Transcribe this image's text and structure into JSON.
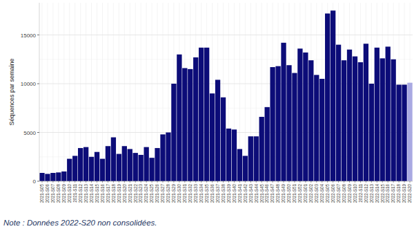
{
  "chart_data": {
    "type": "bar",
    "y_label": "Séquences par semaine",
    "annotation": "Note : Données 2022-S20 non consolidées.",
    "categories": [
      "2021-S05",
      "2021-S06",
      "2021-S07",
      "2021-S08",
      "2021-S09",
      "2021-S10",
      "2021-S11",
      "2021-S12",
      "2021-S13",
      "2021-S14",
      "2021-S15",
      "2021-S16",
      "2021-S17",
      "2021-S18",
      "2021-S19",
      "2021-S20",
      "2021-S21",
      "2021-S22",
      "2021-S23",
      "2021-S24",
      "2021-S25",
      "2021-S26",
      "2021-S27",
      "2021-S28",
      "2021-S29",
      "2021-S30",
      "2021-S31",
      "2021-S32",
      "2021-S33",
      "2021-S34",
      "2021-S35",
      "2021-S36",
      "2021-S37",
      "2021-S38",
      "2021-S39",
      "2021-S40",
      "2021-S41",
      "2021-S42",
      "2021-S43",
      "2021-S44",
      "2021-S45",
      "2021-S46",
      "2021-S47",
      "2021-S48",
      "2021-S49",
      "2021-S50",
      "2021-S51",
      "2021-S52",
      "2022-S01",
      "2022-S02",
      "2022-S03",
      "2022-S04",
      "2022-S05",
      "2022-S06",
      "2022-S07",
      "2022-S08",
      "2022-S09",
      "2022-S10",
      "2022-S11",
      "2022-S12",
      "2022-S13",
      "2022-S14",
      "2022-S15",
      "2022-S16",
      "2022-S17",
      "2022-S18",
      "2022-S19",
      "2022-S20"
    ],
    "values": [
      850,
      750,
      850,
      900,
      1000,
      2300,
      2600,
      3400,
      3500,
      2500,
      3000,
      2300,
      3600,
      4500,
      2800,
      3600,
      3300,
      2900,
      2700,
      3500,
      2400,
      3400,
      4800,
      5000,
      10000,
      13000,
      11600,
      11500,
      12700,
      13700,
      13700,
      9000,
      10400,
      8600,
      5400,
      5300,
      3300,
      2600,
      4600,
      4600,
      6600,
      7600,
      11700,
      11800,
      14200,
      11900,
      11100,
      13600,
      13200,
      12400,
      10900,
      10500,
      17200,
      17500,
      14000,
      12400,
      13500,
      12800,
      12200,
      14100,
      10000,
      13700,
      12600,
      13800,
      12500,
      9900,
      9900,
      10100
    ],
    "colors": [
      "#0c0c78",
      "#0c0c78",
      "#0c0c78",
      "#0c0c78",
      "#0c0c78",
      "#0c0c78",
      "#0c0c78",
      "#0c0c78",
      "#0c0c78",
      "#0c0c78",
      "#0c0c78",
      "#0c0c78",
      "#0c0c78",
      "#0c0c78",
      "#0c0c78",
      "#0c0c78",
      "#0c0c78",
      "#0c0c78",
      "#0c0c78",
      "#0c0c78",
      "#0c0c78",
      "#0c0c78",
      "#0c0c78",
      "#0c0c78",
      "#0c0c78",
      "#0c0c78",
      "#0c0c78",
      "#0c0c78",
      "#0c0c78",
      "#0c0c78",
      "#0c0c78",
      "#0c0c78",
      "#0c0c78",
      "#0c0c78",
      "#0c0c78",
      "#0c0c78",
      "#0c0c78",
      "#0c0c78",
      "#0c0c78",
      "#0c0c78",
      "#0c0c78",
      "#0c0c78",
      "#0c0c78",
      "#0c0c78",
      "#0c0c78",
      "#0c0c78",
      "#0c0c78",
      "#0c0c78",
      "#0c0c78",
      "#0c0c78",
      "#0c0c78",
      "#0c0c78",
      "#0c0c78",
      "#0c0c78",
      "#0c0c78",
      "#0c0c78",
      "#0c0c78",
      "#0c0c78",
      "#0c0c78",
      "#0c0c78",
      "#0c0c78",
      "#0c0c78",
      "#0c0c78",
      "#0c0c78",
      "#0c0c78",
      "#0c0c78",
      "#0c0c78",
      "#a9a9e2"
    ],
    "ylim": [
      0,
      18300
    ],
    "yticks": [
      0,
      5000,
      10000,
      15000
    ],
    "grid": true
  }
}
